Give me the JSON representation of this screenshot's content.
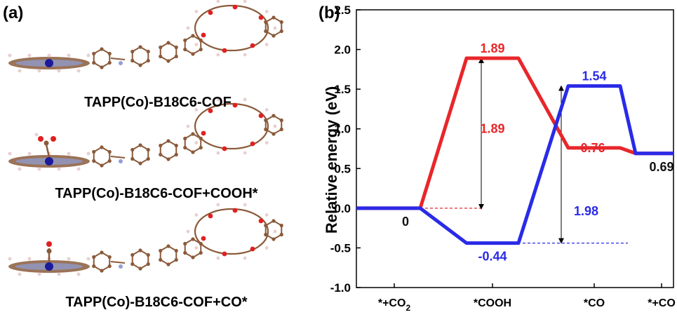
{
  "panel_a": {
    "label": "(a)",
    "captions": [
      "TAPP(Co)-B18C6-COF",
      "TAPP(Co)-B18C6-COF+COOH*",
      "TAPP(Co)-B18C6-COF+CO*"
    ]
  },
  "colors": {
    "red_series": "#e8262a",
    "blue_series": "#2a2ae8",
    "carbon_atom": "#8a5a3a",
    "hydrogen_atom": "#e8cfcf",
    "oxygen_atom": "#e02020",
    "nitrogen_atom": "#8fa0d8",
    "cobalt_atom": "#1a1a9a"
  },
  "chart_data": {
    "type": "line",
    "panel_label": "(b)",
    "ylabel": "Relative energy (eV)",
    "ylim": [
      -1.0,
      2.5
    ],
    "yticks": [
      "-1.0",
      "-0.5",
      "0.0",
      "0.5",
      "1.0",
      "1.5",
      "2.0",
      "2.5"
    ],
    "categories": [
      "*+CO",
      "*COOH",
      "*CO",
      "*+CO"
    ],
    "category_subscripts": [
      "2",
      "",
      "",
      ""
    ],
    "series": [
      {
        "color": "#e8262a",
        "values": [
          0,
          1.89,
          0.76,
          0.69
        ]
      },
      {
        "color": "#2a2ae8",
        "values": [
          0,
          -0.44,
          1.54,
          0.69
        ]
      }
    ],
    "annotations": [
      {
        "text": "0",
        "color": "#111111"
      },
      {
        "text": "1.89",
        "color": "#e8262a"
      },
      {
        "text": "1.89",
        "color": "#e8262a"
      },
      {
        "text": "0.76",
        "color": "#e8262a"
      },
      {
        "text": "0.69",
        "color": "#111111"
      },
      {
        "text": "1.54",
        "color": "#2a2ae8"
      },
      {
        "text": "1.98",
        "color": "#2a2ae8"
      },
      {
        "text": "-0.44",
        "color": "#2a2ae8"
      }
    ],
    "grid": false
  }
}
